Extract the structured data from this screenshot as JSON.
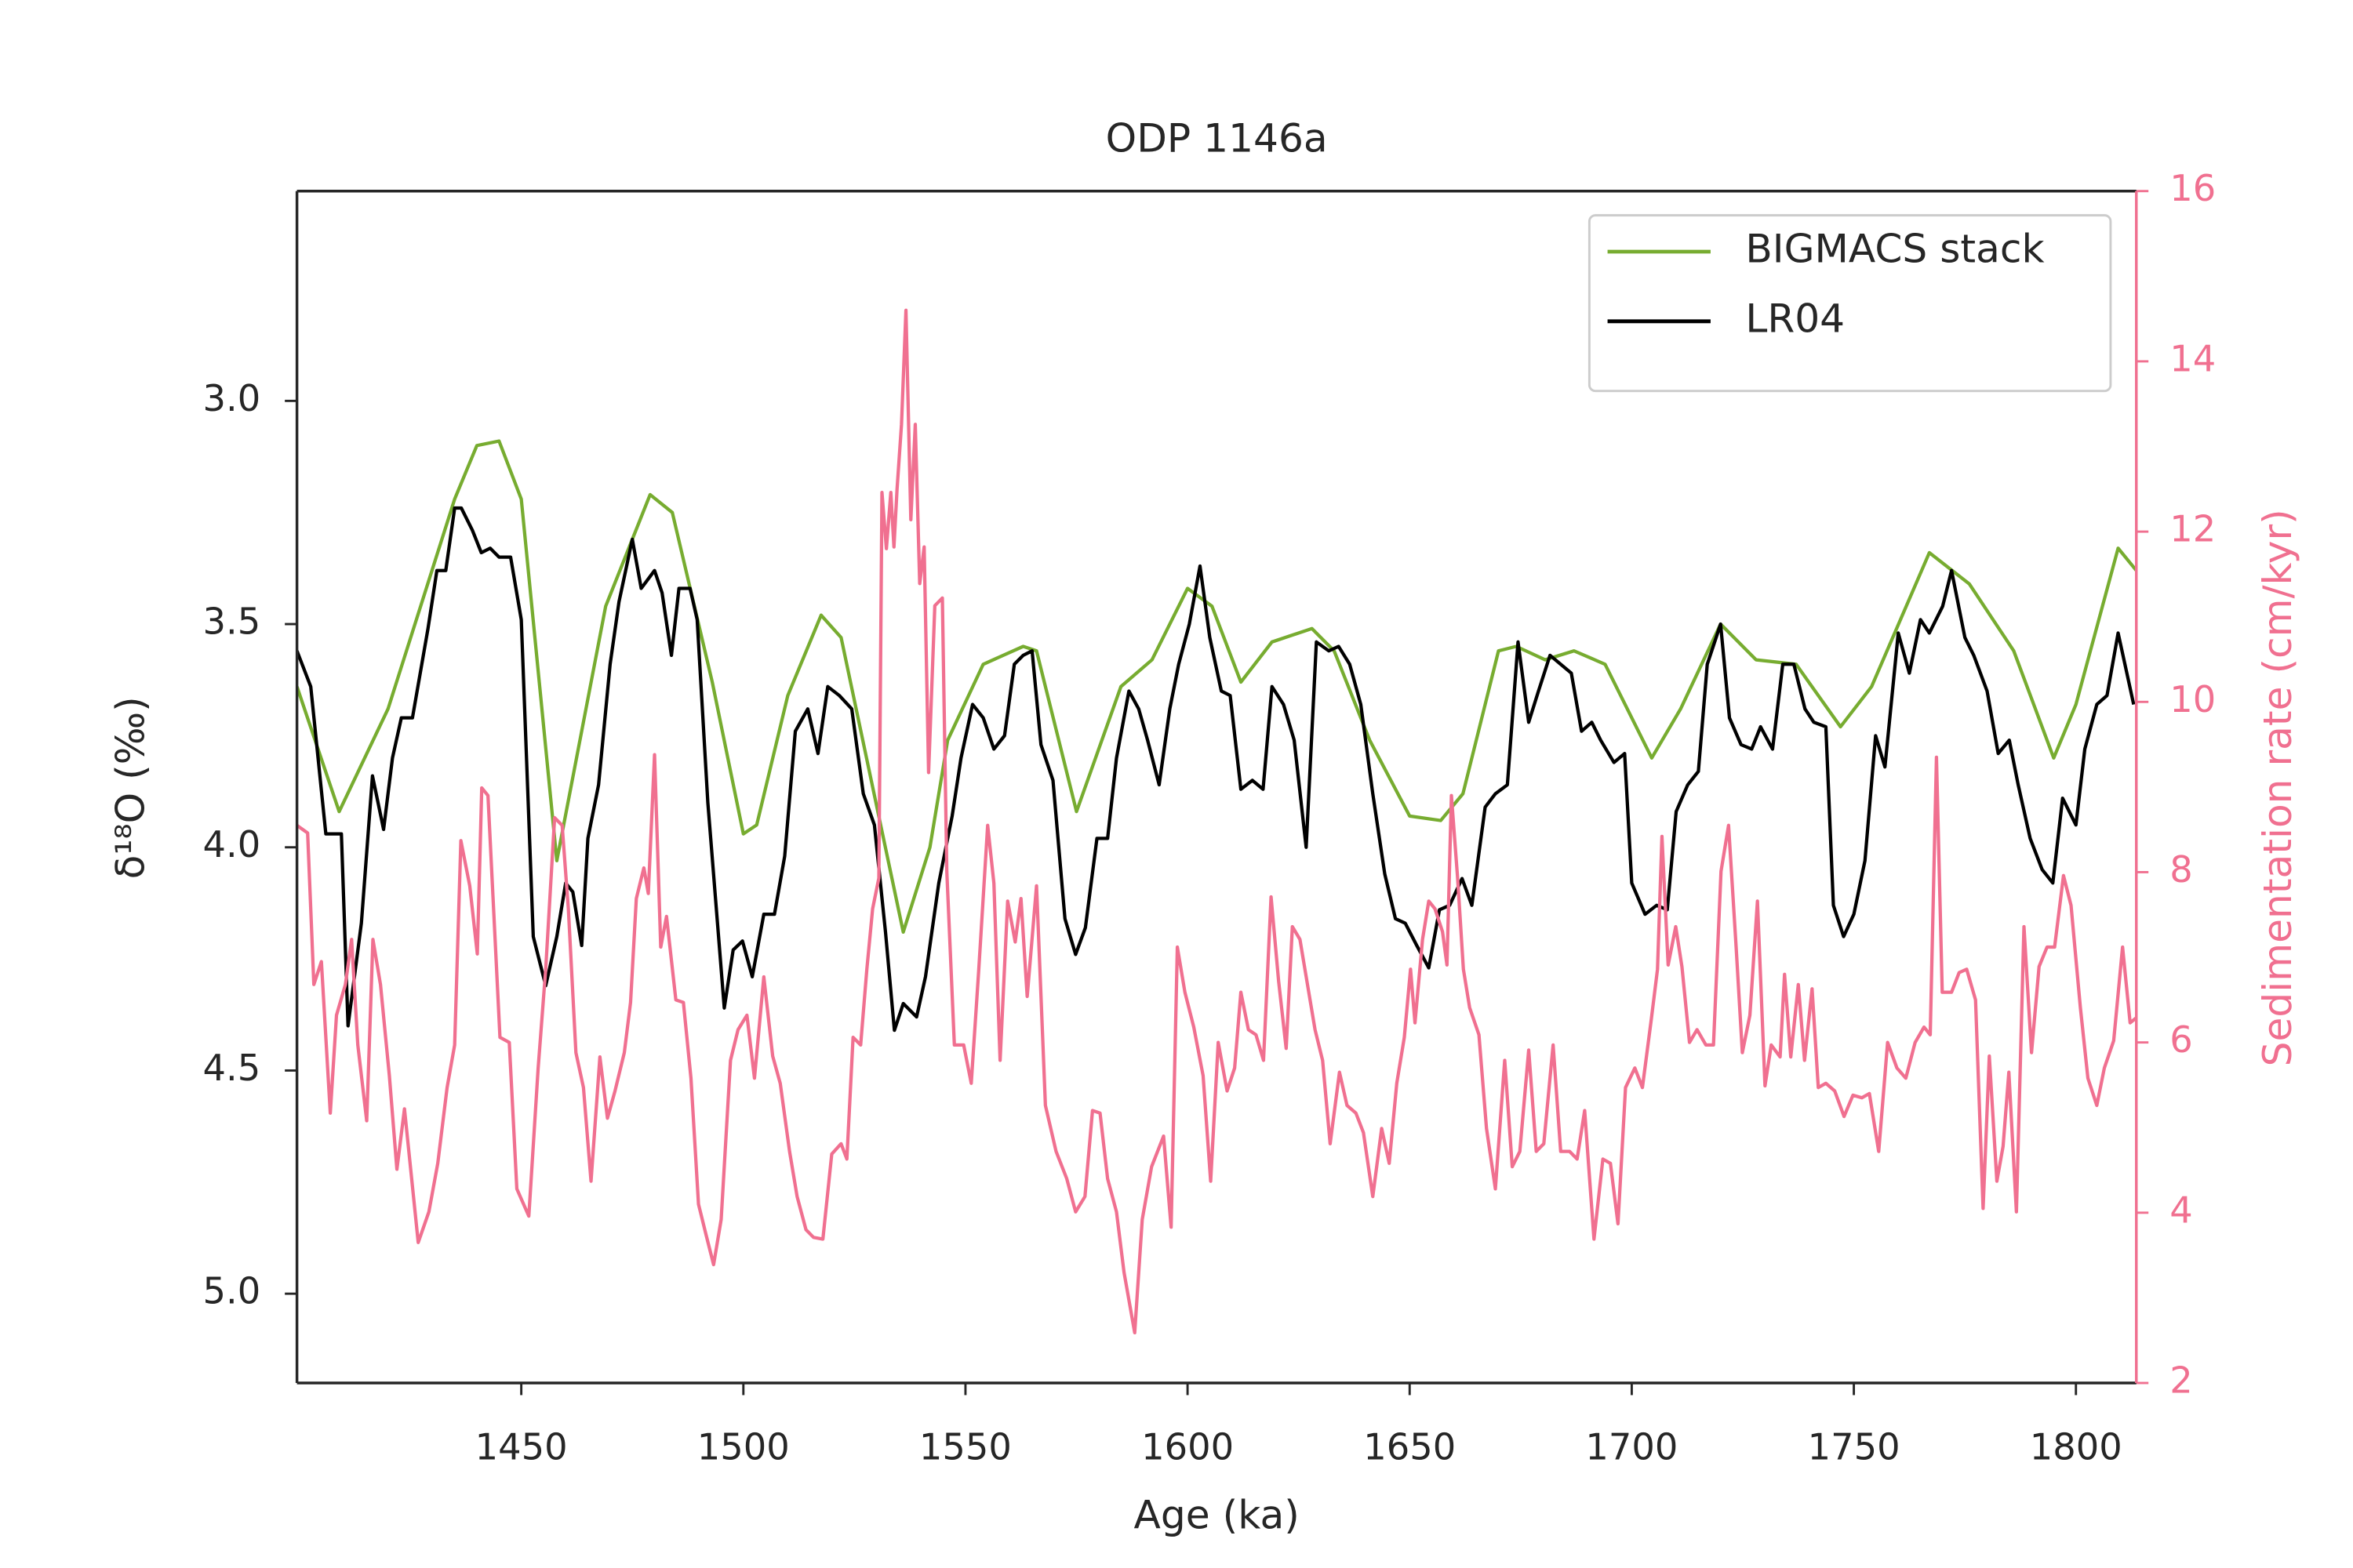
{
  "chart_data": {
    "type": "line",
    "title": "ODP 1146a",
    "xlabel": "Age (ka)",
    "ylabel": "δ¹⁸O (‰)",
    "y2label": "Sedimentation rate (cm/kyr)",
    "xlim": [
      1399.5,
      1813.6
    ],
    "xticks": [
      1450,
      1500,
      1550,
      1600,
      1650,
      1700,
      1750,
      1800
    ],
    "ylim": [
      5.2,
      2.53
    ],
    "yticks": [
      {
        "value": 3,
        "label": "3.0"
      },
      3.5,
      {
        "value": 4,
        "label": "4.0"
      },
      4.5,
      {
        "value": 5,
        "label": "5.0"
      }
    ],
    "y2lim": [
      2,
      16
    ],
    "y2ticks": [
      2,
      4,
      6,
      8,
      10,
      12,
      14,
      16
    ],
    "y2color": "#f07090",
    "legend": "upper right",
    "grid": false,
    "series": [
      {
        "name": "BIGMACS stack",
        "color": "#77ac30",
        "x": [
          1399.5,
          1409,
          1420,
          1435,
          1440,
          1445,
          1450,
          1458,
          1469,
          1479,
          1484,
          1493,
          1500,
          1503,
          1510,
          1517.5,
          1522,
          1529,
          1536,
          1542,
          1546,
          1554,
          1563,
          1566,
          1575,
          1585,
          1592,
          1600,
          1605.5,
          1612,
          1619,
          1628,
          1633,
          1641,
          1650,
          1657,
          1662,
          1670,
          1674,
          1680.5,
          1687,
          1694,
          1704.5,
          1711,
          1720,
          1728,
          1737,
          1747,
          1754,
          1767,
          1776,
          1786,
          1795,
          1800,
          1809.5,
          1813.6
        ],
        "values": [
          3.64,
          3.92,
          3.69,
          3.22,
          3.1,
          3.09,
          3.22,
          4.03,
          3.46,
          3.21,
          3.25,
          3.63,
          3.97,
          3.95,
          3.66,
          3.48,
          3.53,
          3.86,
          4.19,
          4.0,
          3.76,
          3.59,
          3.55,
          3.56,
          3.92,
          3.64,
          3.58,
          3.42,
          3.46,
          3.63,
          3.54,
          3.51,
          3.56,
          3.76,
          3.93,
          3.94,
          3.88,
          3.56,
          3.55,
          3.58,
          3.56,
          3.59,
          3.8,
          3.69,
          3.5,
          3.58,
          3.59,
          3.73,
          3.64,
          3.34,
          3.41,
          3.56,
          3.8,
          3.68,
          3.33,
          3.38
        ]
      },
      {
        "name": "LR04",
        "color": "#000000",
        "x": [
          1399.5,
          1402.6,
          1406,
          1409.5,
          1411,
          1414,
          1416.5,
          1419,
          1421,
          1423,
          1425.5,
          1429,
          1431,
          1433,
          1435,
          1436.5,
          1439,
          1441,
          1443,
          1445,
          1447.6,
          1450,
          1452.7,
          1455.5,
          1458,
          1460,
          1461.6,
          1463.6,
          1465,
          1467.4,
          1470,
          1472,
          1475,
          1477,
          1480,
          1481.7,
          1483.8,
          1485.5,
          1488,
          1489.6,
          1492,
          1495.7,
          1497.7,
          1499.8,
          1502,
          1504.6,
          1507,
          1509.3,
          1511.7,
          1514.5,
          1516.8,
          1519,
          1521.6,
          1524.4,
          1527,
          1529.5,
          1532,
          1534,
          1536,
          1539,
          1541,
          1544,
          1547,
          1549,
          1551.6,
          1554,
          1556.4,
          1558.8,
          1561,
          1563,
          1565,
          1567,
          1569.7,
          1572.4,
          1574.8,
          1577,
          1579.6,
          1582,
          1584,
          1586.8,
          1589,
          1591,
          1593.6,
          1596,
          1598,
          1600.4,
          1602.8,
          1605,
          1607.6,
          1609.6,
          1612,
          1614.6,
          1617,
          1619,
          1621.6,
          1624,
          1626.7,
          1629,
          1631.8,
          1634,
          1636.5,
          1639,
          1641.7,
          1644.4,
          1646.8,
          1649,
          1651.6,
          1654.3,
          1656.7,
          1659,
          1661.8,
          1664,
          1667,
          1669.3,
          1672,
          1674.4,
          1676.8,
          1679,
          1681.6,
          1684,
          1686.4,
          1688.7,
          1691,
          1693,
          1696,
          1698.4,
          1700,
          1703,
          1705.6,
          1708,
          1710,
          1712.6,
          1715,
          1717,
          1720,
          1722,
          1724.6,
          1727,
          1729,
          1731.7,
          1734,
          1736.5,
          1739,
          1741,
          1743.7,
          1745.4,
          1747.7,
          1750,
          1752.5,
          1754.9,
          1757,
          1760,
          1762.5,
          1765,
          1767,
          1770,
          1772,
          1775,
          1777,
          1780,
          1782.5,
          1785,
          1787,
          1789.7,
          1792.4,
          1794.8,
          1797,
          1800,
          1802,
          1804.7,
          1807,
          1809.5,
          1813
        ],
        "values": [
          3.56,
          3.64,
          3.97,
          3.97,
          4.4,
          4.17,
          3.84,
          3.96,
          3.8,
          3.71,
          3.71,
          3.51,
          3.38,
          3.38,
          3.24,
          3.24,
          3.29,
          3.34,
          3.33,
          3.35,
          3.35,
          3.49,
          4.2,
          4.31,
          4.2,
          4.08,
          4.1,
          4.22,
          3.98,
          3.86,
          3.59,
          3.45,
          3.31,
          3.42,
          3.38,
          3.43,
          3.57,
          3.42,
          3.42,
          3.49,
          3.9,
          4.36,
          4.23,
          4.21,
          4.29,
          4.15,
          4.15,
          4.02,
          3.74,
          3.69,
          3.79,
          3.64,
          3.66,
          3.69,
          3.88,
          3.95,
          4.19,
          4.41,
          4.35,
          4.38,
          4.29,
          4.08,
          3.93,
          3.8,
          3.68,
          3.71,
          3.78,
          3.75,
          3.59,
          3.57,
          3.56,
          3.77,
          3.85,
          4.16,
          4.24,
          4.18,
          3.98,
          3.98,
          3.8,
          3.65,
          3.69,
          3.76,
          3.86,
          3.69,
          3.59,
          3.5,
          3.37,
          3.53,
          3.65,
          3.66,
          3.87,
          3.85,
          3.87,
          3.64,
          3.68,
          3.76,
          4.0,
          3.54,
          3.56,
          3.55,
          3.59,
          3.68,
          3.88,
          4.06,
          4.16,
          4.17,
          4.22,
          4.27,
          4.14,
          4.13,
          4.07,
          4.13,
          3.91,
          3.88,
          3.86,
          3.54,
          3.72,
          3.65,
          3.57,
          3.59,
          3.61,
          3.74,
          3.72,
          3.76,
          3.81,
          3.79,
          4.08,
          4.15,
          4.13,
          4.14,
          3.92,
          3.86,
          3.83,
          3.59,
          3.5,
          3.71,
          3.77,
          3.78,
          3.73,
          3.78,
          3.59,
          3.59,
          3.69,
          3.72,
          3.73,
          4.13,
          4.2,
          4.15,
          4.03,
          3.75,
          3.82,
          3.52,
          3.61,
          3.49,
          3.52,
          3.46,
          3.38,
          3.53,
          3.57,
          3.65,
          3.79,
          3.76,
          3.86,
          3.98,
          4.05,
          4.08,
          3.89,
          3.95,
          3.78,
          3.68,
          3.66,
          3.52,
          3.68
        ]
      },
      {
        "color": "#f07090",
        "axis": "y2",
        "x": [
          1399.5,
          1401.9,
          1403.3,
          1405.0,
          1407.0,
          1408.4,
          1410.4,
          1411.8,
          1413.2,
          1415.2,
          1416.6,
          1418.3,
          1420.3,
          1422.0,
          1423.7,
          1426.8,
          1429.2,
          1431.2,
          1433.3,
          1435.0,
          1436.4,
          1438.4,
          1440.1,
          1441.1,
          1442.5,
          1445.2,
          1447.3,
          1449.0,
          1451.7,
          1453.8,
          1455.5,
          1457.5,
          1459.2,
          1460.6,
          1462.3,
          1464.0,
          1465.7,
          1467.7,
          1469.4,
          1471.1,
          1473.2,
          1474.6,
          1475.9,
          1477.6,
          1478.6,
          1480.0,
          1481.4,
          1482.7,
          1484.8,
          1486.5,
          1488.2,
          1489.9,
          1491.6,
          1493.3,
          1495.0,
          1497.1,
          1498.8,
          1500.8,
          1502.5,
          1504.6,
          1506.6,
          1508.3,
          1510.4,
          1512.1,
          1514.1,
          1515.8,
          1517.9,
          1519.9,
          1522.0,
          1523.3,
          1524.7,
          1526.4,
          1527.8,
          1529.1,
          1530.5,
          1531.2,
          1532.2,
          1533.2,
          1533.9,
          1534.6,
          1535.6,
          1536.6,
          1537.7,
          1538.7,
          1539.7,
          1540.7,
          1541.7,
          1543.1,
          1544.8,
          1545.8,
          1547.5,
          1549.6,
          1551.3,
          1553.0,
          1555.0,
          1556.4,
          1557.8,
          1559.5,
          1561.2,
          1562.5,
          1563.9,
          1566.0,
          1568.0,
          1570.4,
          1572.8,
          1574.8,
          1576.9,
          1578.6,
          1580.3,
          1582.0,
          1584.0,
          1585.7,
          1588.1,
          1589.8,
          1591.9,
          1594.6,
          1596.3,
          1597.7,
          1599.4,
          1601.4,
          1603.5,
          1605.2,
          1606.9,
          1608.9,
          1610.6,
          1612.0,
          1613.7,
          1615.4,
          1617.1,
          1618.8,
          1620.5,
          1622.2,
          1623.6,
          1625.3,
          1627.0,
          1628.7,
          1630.4,
          1632.1,
          1634.2,
          1635.9,
          1637.9,
          1639.6,
          1641.7,
          1643.7,
          1645.4,
          1647.1,
          1648.8,
          1650.2,
          1651.2,
          1652.9,
          1654.3,
          1655.7,
          1657.4,
          1658.4,
          1659.4,
          1660.8,
          1662.1,
          1663.5,
          1665.6,
          1667.3,
          1669.3,
          1671.4,
          1673.1,
          1674.8,
          1676.8,
          1678.5,
          1680.2,
          1682.3,
          1684.0,
          1686.0,
          1687.7,
          1689.4,
          1691.5,
          1693.5,
          1695.2,
          1696.9,
          1698.6,
          1700.7,
          1702.4,
          1704.4,
          1705.8,
          1706.8,
          1708.2,
          1709.9,
          1711.3,
          1713.0,
          1714.7,
          1716.7,
          1718.4,
          1720.1,
          1721.8,
          1723.5,
          1724.9,
          1726.6,
          1728.3,
          1730.0,
          1731.4,
          1733.4,
          1734.4,
          1735.8,
          1737.5,
          1738.9,
          1740.6,
          1742.0,
          1743.7,
          1745.7,
          1747.8,
          1749.8,
          1751.8,
          1753.5,
          1755.6,
          1757.6,
          1759.7,
          1761.7,
          1763.8,
          1765.8,
          1767.2,
          1768.6,
          1769.9,
          1772.0,
          1773.7,
          1775.4,
          1777.4,
          1779.1,
          1780.5,
          1782.2,
          1783.6,
          1784.9,
          1786.6,
          1788.3,
          1790.0,
          1791.7,
          1793.5,
          1795.2,
          1797.2,
          1798.9,
          1801.0,
          1802.7,
          1804.7,
          1806.4,
          1808.5,
          1810.5,
          1812.2,
          1813.6
        ],
        "values": [
          8.55,
          8.46,
          6.68,
          6.95,
          5.17,
          6.32,
          6.68,
          7.21,
          5.97,
          5.08,
          7.21,
          6.68,
          5.61,
          4.51,
          5.22,
          3.65,
          4.01,
          4.58,
          5.47,
          5.97,
          8.37,
          7.84,
          7.04,
          8.99,
          8.9,
          6.06,
          6.0,
          4.28,
          3.96,
          5.7,
          6.86,
          8.64,
          8.55,
          7.57,
          5.88,
          5.47,
          4.37,
          5.83,
          5.11,
          5.43,
          5.88,
          6.47,
          7.69,
          8.05,
          7.75,
          9.38,
          7.12,
          7.48,
          6.5,
          6.47,
          5.58,
          4.1,
          3.74,
          3.39,
          3.92,
          5.79,
          6.15,
          6.32,
          5.58,
          6.77,
          5.84,
          5.52,
          4.72,
          4.19,
          3.8,
          3.71,
          3.69,
          4.69,
          4.81,
          4.63,
          6.06,
          5.97,
          6.86,
          7.57,
          7.93,
          12.46,
          11.8,
          12.46,
          11.82,
          12.5,
          13.26,
          14.6,
          12.14,
          13.26,
          11.39,
          11.82,
          9.17,
          11.13,
          11.22,
          8.01,
          5.97,
          5.97,
          5.52,
          6.86,
          8.55,
          7.87,
          5.79,
          7.66,
          7.18,
          7.69,
          6.54,
          7.84,
          5.26,
          4.72,
          4.4,
          4.01,
          4.19,
          5.2,
          5.17,
          4.4,
          4.01,
          3.3,
          2.59,
          3.92,
          4.54,
          4.9,
          3.83,
          7.12,
          6.59,
          6.18,
          5.61,
          4.37,
          6.0,
          5.43,
          5.7,
          6.59,
          6.15,
          6.09,
          5.79,
          7.71,
          6.72,
          5.93,
          7.36,
          7.21,
          6.68,
          6.15,
          5.79,
          4.81,
          5.65,
          5.26,
          5.17,
          4.94,
          4.19,
          4.99,
          4.58,
          5.52,
          6.06,
          6.86,
          6.23,
          7.21,
          7.66,
          7.57,
          7.3,
          6.91,
          8.9,
          7.93,
          6.86,
          6.41,
          6.09,
          4.99,
          4.28,
          5.79,
          4.54,
          4.72,
          5.91,
          4.72,
          4.81,
          5.97,
          4.72,
          4.72,
          4.63,
          5.2,
          3.69,
          4.63,
          4.58,
          3.87,
          5.47,
          5.7,
          5.47,
          6.27,
          6.86,
          8.42,
          6.91,
          7.36,
          6.89,
          6.0,
          6.15,
          5.97,
          5.97,
          8.01,
          8.55,
          7.12,
          5.88,
          6.32,
          7.66,
          5.49,
          5.97,
          5.83,
          6.8,
          5.83,
          6.68,
          5.79,
          6.63,
          5.47,
          5.52,
          5.43,
          5.13,
          5.38,
          5.35,
          5.4,
          4.72,
          6.0,
          5.7,
          5.58,
          6.0,
          6.18,
          6.09,
          9.35,
          6.59,
          6.59,
          6.82,
          6.86,
          6.5,
          4.05,
          5.84,
          4.37,
          4.78,
          5.65,
          4.01,
          7.36,
          5.88,
          6.89,
          7.12,
          7.12,
          7.96,
          7.61,
          6.41,
          5.58,
          5.26,
          5.7,
          6.02,
          7.12,
          6.23,
          6.29
        ]
      }
    ]
  }
}
